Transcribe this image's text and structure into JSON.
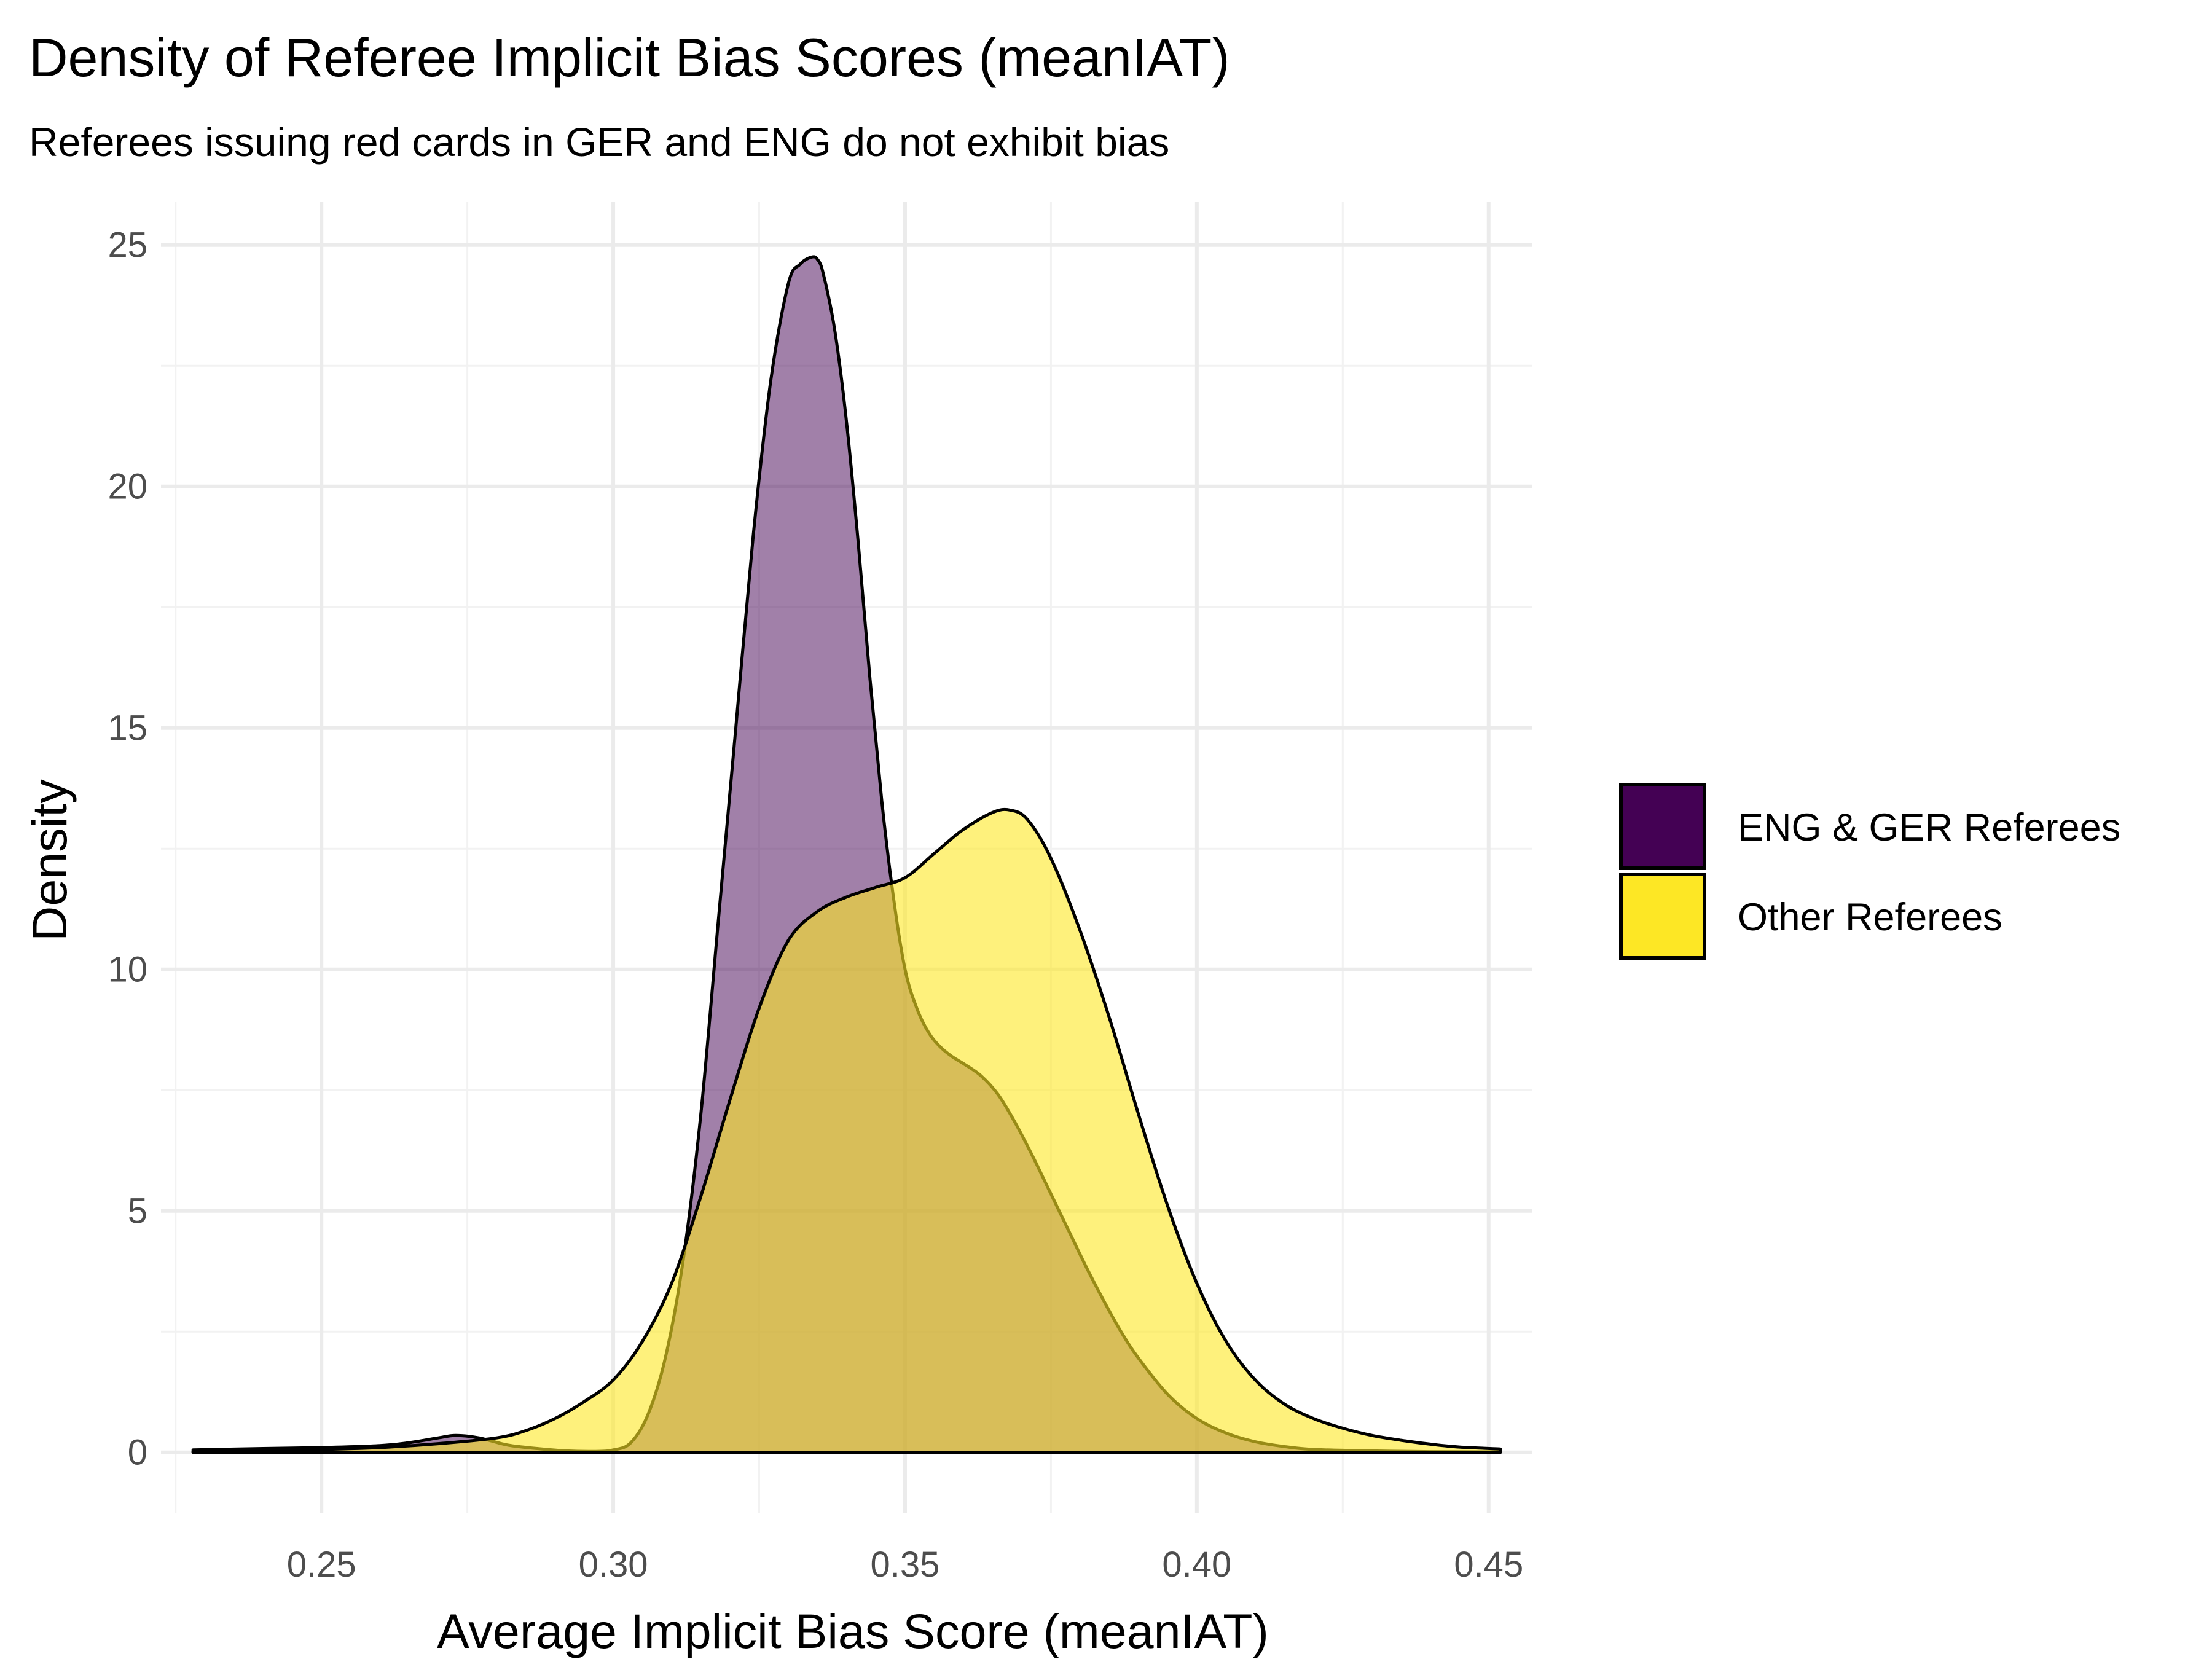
{
  "chart_data": {
    "type": "area",
    "title": "Density of Referee Implicit Bias Scores (meanIAT)",
    "subtitle": "Referees issuing red cards in GER and ENG do not exhibit bias",
    "xlabel": "Average Implicit Bias Score (meanIAT)",
    "ylabel": "Density",
    "xlim": [
      0.2225,
      0.4575
    ],
    "ylim": [
      -1.25,
      25.9
    ],
    "x_ticks": [
      0.25,
      0.3,
      0.35,
      0.4,
      0.45
    ],
    "x_tick_labels": [
      "0.25",
      "0.30",
      "0.35",
      "0.40",
      "0.45"
    ],
    "x_minor_ticks": [
      0.225,
      0.275,
      0.325,
      0.375,
      0.425
    ],
    "y_ticks": [
      0,
      5,
      10,
      15,
      20,
      25
    ],
    "y_tick_labels": [
      "0",
      "5",
      "10",
      "15",
      "20",
      "25"
    ],
    "y_minor_ticks": [
      2.5,
      7.5,
      12.5,
      17.5,
      22.5
    ],
    "grid": true,
    "legend_position": "right",
    "series": [
      {
        "name": "ENG & GER Referees",
        "color": "#440154",
        "opacity": 0.5,
        "x": [
          0.228,
          0.24,
          0.25,
          0.26,
          0.265,
          0.27,
          0.273,
          0.277,
          0.282,
          0.287,
          0.292,
          0.297,
          0.3,
          0.303,
          0.306,
          0.309,
          0.312,
          0.315,
          0.318,
          0.321,
          0.324,
          0.327,
          0.33,
          0.332,
          0.334,
          0.335,
          0.336,
          0.338,
          0.34,
          0.342,
          0.344,
          0.346,
          0.348,
          0.35,
          0.352,
          0.354,
          0.356,
          0.358,
          0.36,
          0.363,
          0.366,
          0.369,
          0.372,
          0.375,
          0.378,
          0.381,
          0.384,
          0.387,
          0.39,
          0.395,
          0.4,
          0.405,
          0.41,
          0.415,
          0.42,
          0.43,
          0.44,
          0.452
        ],
        "y": [
          0.05,
          0.08,
          0.1,
          0.14,
          0.2,
          0.3,
          0.35,
          0.3,
          0.15,
          0.08,
          0.03,
          0.02,
          0.05,
          0.2,
          0.8,
          2.0,
          4.0,
          7.0,
          11.0,
          15.0,
          19.0,
          22.2,
          24.2,
          24.6,
          24.75,
          24.7,
          24.4,
          23.2,
          21.3,
          18.8,
          16.0,
          13.5,
          11.5,
          10.0,
          9.2,
          8.7,
          8.4,
          8.2,
          8.05,
          7.8,
          7.4,
          6.8,
          6.1,
          5.35,
          4.6,
          3.85,
          3.15,
          2.5,
          1.95,
          1.2,
          0.7,
          0.4,
          0.22,
          0.12,
          0.06,
          0.03,
          0.015,
          0.01
        ]
      },
      {
        "name": "Other Referees",
        "color": "#fde725",
        "opacity": 0.6,
        "x": [
          0.228,
          0.24,
          0.25,
          0.26,
          0.27,
          0.28,
          0.285,
          0.29,
          0.295,
          0.3,
          0.305,
          0.31,
          0.315,
          0.32,
          0.325,
          0.33,
          0.335,
          0.34,
          0.345,
          0.35,
          0.355,
          0.36,
          0.365,
          0.368,
          0.371,
          0.375,
          0.38,
          0.385,
          0.39,
          0.395,
          0.4,
          0.405,
          0.41,
          0.415,
          0.42,
          0.425,
          0.43,
          0.435,
          0.44,
          0.445,
          0.452
        ],
        "y": [
          0.02,
          0.04,
          0.06,
          0.1,
          0.18,
          0.3,
          0.45,
          0.7,
          1.05,
          1.5,
          2.3,
          3.5,
          5.3,
          7.3,
          9.2,
          10.6,
          11.2,
          11.5,
          11.7,
          11.9,
          12.4,
          12.9,
          13.25,
          13.3,
          13.1,
          12.3,
          10.8,
          9.0,
          7.0,
          5.1,
          3.5,
          2.3,
          1.5,
          1.0,
          0.7,
          0.5,
          0.35,
          0.25,
          0.17,
          0.11,
          0.07
        ]
      }
    ]
  }
}
